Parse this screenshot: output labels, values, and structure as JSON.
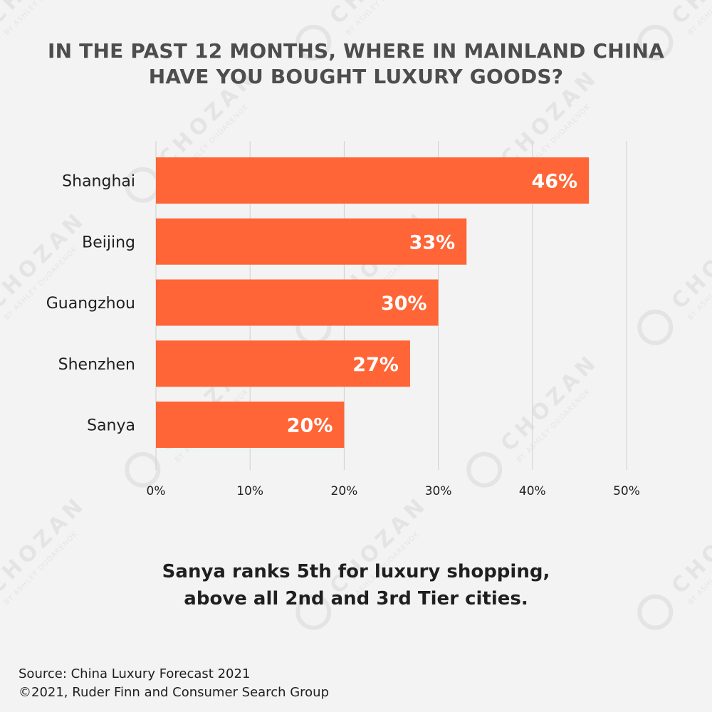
{
  "title": "IN THE PAST 12 MONTHS, WHERE IN MAINLAND CHINA\nHAVE YOU BOUGHT LUXURY GOODS?",
  "subtitle": "Sanya ranks 5th for luxury shopping,\nabove all 2nd and 3rd Tier cities.",
  "source_line_1": "Source: China Luxury Forecast 2021",
  "source_line_2": "©2021, Ruder Finn and Consumer Search Group",
  "watermark": {
    "brand": "CHOZAN",
    "byline": "BY ASHLEY DUDARENOK"
  },
  "colors": {
    "bar": "#ff6536",
    "title": "#4d4d4d",
    "text": "#1f1f1f",
    "grid": "#cfcfcf",
    "background": "#f3f3f3"
  },
  "chart_data": {
    "type": "bar",
    "orientation": "horizontal",
    "categories": [
      "Shanghai",
      "Beijing",
      "Guangzhou",
      "Shenzhen",
      "Sanya"
    ],
    "values": [
      46,
      33,
      30,
      27,
      20
    ],
    "value_labels": [
      "46%",
      "33%",
      "30%",
      "27%",
      "20%"
    ],
    "x_ticks": [
      "0%",
      "10%",
      "20%",
      "30%",
      "40%",
      "50%"
    ],
    "xlim": [
      0,
      50
    ],
    "grid": true,
    "legend": false,
    "title": "IN THE PAST 12 MONTHS, WHERE IN MAINLAND CHINA HAVE YOU BOUGHT LUXURY GOODS?"
  }
}
